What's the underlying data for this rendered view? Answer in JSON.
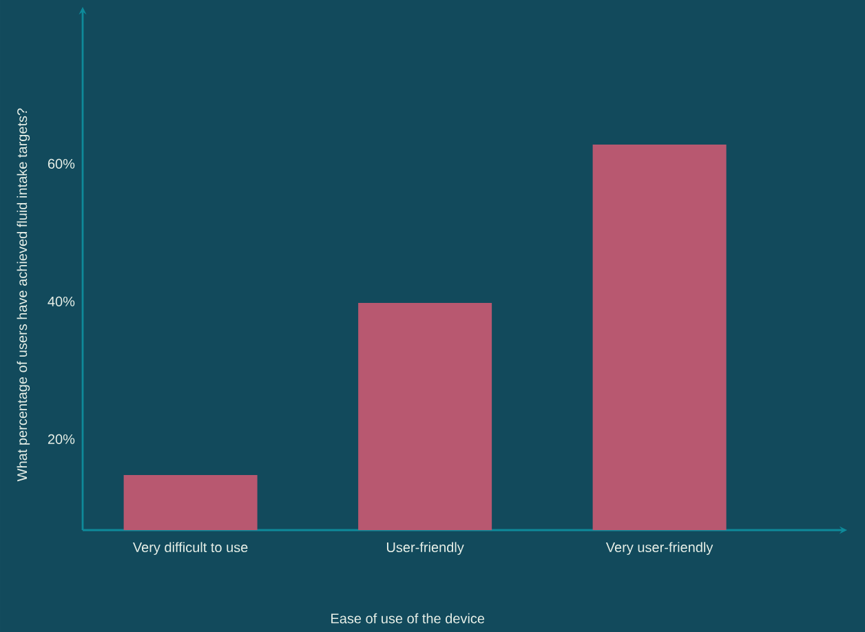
{
  "chart_data": {
    "type": "bar",
    "xlabel": "Ease of use of the device",
    "ylabel": "What percentage of users have achieved fluid intake targets?",
    "categories": [
      "Very difficult to use",
      "User-friendly",
      "Very user-friendly"
    ],
    "values": [
      15,
      40,
      63
    ],
    "color": "#b85870",
    "ylim": [
      7,
      83
    ],
    "yticks": [
      {
        "value": 20,
        "label": "20%"
      },
      {
        "value": 40,
        "label": "40%"
      },
      {
        "value": 60,
        "label": "60%"
      }
    ]
  }
}
